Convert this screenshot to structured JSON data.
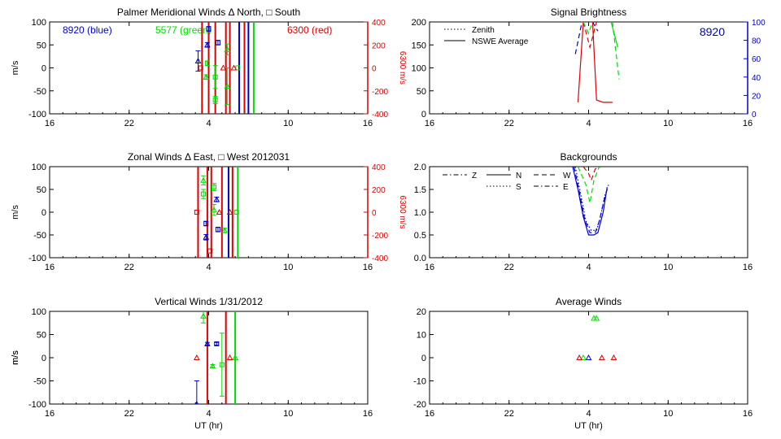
{
  "colors": {
    "blue": "#0000cc",
    "green": "#00dd00",
    "red": "#dd0000",
    "axis": "#000000"
  },
  "chart_data": [
    {
      "id": "meridional",
      "type": "scatter",
      "title": "Palmer Meridional Winds Δ North, □ South",
      "xlabel": "",
      "ylabel": "m/s",
      "y2label": "6300 m/s",
      "xticks": [
        "16",
        "22",
        "4",
        "10",
        "16"
      ],
      "xlim": [
        16,
        40
      ],
      "ylim": [
        -100,
        100
      ],
      "yticks": [
        "100",
        "50",
        "0",
        "-50",
        "-100"
      ],
      "y2ticks": [
        "400",
        "200",
        "0",
        "-200",
        "-400"
      ],
      "annotations": [
        {
          "text": "8920 (blue)",
          "color": "blue"
        },
        {
          "text": "5577 (green)",
          "color": "green"
        },
        {
          "text": "6300 (red)",
          "color": "red"
        }
      ],
      "vlines": [
        {
          "x": 27.5,
          "color": "red"
        },
        {
          "x": 28.0,
          "color": "red"
        },
        {
          "x": 28.5,
          "color": "red"
        },
        {
          "x": 29.3,
          "color": "red"
        },
        {
          "x": 29.6,
          "color": "red"
        },
        {
          "x": 30.3,
          "color": "blue"
        },
        {
          "x": 30.7,
          "color": "red"
        },
        {
          "x": 31.0,
          "color": "blue"
        },
        {
          "x": 31.4,
          "color": "green"
        }
      ],
      "series": [
        {
          "name": "8920",
          "color": "blue",
          "points": [
            {
              "x": 27.2,
              "y": 15,
              "marker": "triangle",
              "err": 22
            },
            {
              "x": 27.9,
              "y": 50,
              "marker": "triangle",
              "err": 5
            },
            {
              "x": 28.0,
              "y": 85,
              "marker": "square",
              "err": 5
            },
            {
              "x": 28.7,
              "y": 55,
              "marker": "square",
              "err": 5
            }
          ]
        },
        {
          "name": "5577",
          "color": "green",
          "points": [
            {
              "x": 27.8,
              "y": -20,
              "marker": "triangle",
              "err": 5
            },
            {
              "x": 27.9,
              "y": 10,
              "marker": "square",
              "err": 5
            },
            {
              "x": 28.5,
              "y": -20,
              "marker": "square",
              "err": 25
            },
            {
              "x": 28.5,
              "y": -70,
              "marker": "square",
              "err": 8
            },
            {
              "x": 29.4,
              "y": 40,
              "marker": "triangle",
              "err": 12
            },
            {
              "x": 29.4,
              "y": -40,
              "marker": "triangle",
              "err": 40
            },
            {
              "x": 30.2,
              "y": 0,
              "marker": "square",
              "err": 0
            }
          ]
        },
        {
          "name": "6300",
          "color": "red",
          "points": [
            {
              "x": 27.4,
              "y": 0,
              "marker": "square",
              "err": 0
            },
            {
              "x": 29.1,
              "y": 0,
              "marker": "triangle",
              "err": 0
            },
            {
              "x": 29.9,
              "y": 0,
              "marker": "triangle",
              "err": 0
            }
          ]
        }
      ]
    },
    {
      "id": "brightness",
      "type": "line",
      "title": "Signal Brightness",
      "xlabel": "",
      "ylabel": "",
      "xticks": [
        "16",
        "22",
        "4",
        "10",
        "16"
      ],
      "xlim": [
        16,
        40
      ],
      "ylim": [
        0,
        200
      ],
      "yticks": [
        "200",
        "150",
        "100",
        "50",
        "0"
      ],
      "y2ticks": [
        "100",
        "80",
        "60",
        "40",
        "20",
        "0"
      ],
      "y2lim": [
        0,
        100
      ],
      "legend": {
        "position": "top-left",
        "entries": [
          {
            "label": "Zenith",
            "style": "dotted"
          },
          {
            "label": "NSWE Average",
            "style": "solid"
          }
        ]
      },
      "annotations": [
        {
          "text": "8920",
          "color": "blue"
        }
      ],
      "series": [
        {
          "name": "8920",
          "color": "blue",
          "axis": "right",
          "style": "dashed",
          "points": [
            [
              27.0,
              65
            ],
            [
              27.5,
              100
            ]
          ]
        },
        {
          "name": "8920",
          "color": "blue",
          "axis": "right",
          "style": "dashed",
          "points": [
            [
              28.3,
              100
            ],
            [
              28.7,
              90
            ]
          ]
        },
        {
          "name": "6300",
          "color": "red",
          "style": "dashed",
          "points": [
            [
              27.6,
              200
            ],
            [
              28.1,
              145
            ],
            [
              28.6,
              200
            ]
          ]
        },
        {
          "name": "6300",
          "color": "red",
          "style": "solid",
          "points": [
            [
              27.2,
              25
            ],
            [
              27.6,
              200
            ],
            [
              28.3,
              200
            ],
            [
              28.6,
              30
            ],
            [
              29.1,
              25
            ],
            [
              29.8,
              25
            ]
          ]
        },
        {
          "name": "5577",
          "color": "green",
          "style": "dashed",
          "points": [
            [
              27.6,
              200
            ],
            [
              28.0,
              175
            ],
            [
              28.3,
              200
            ]
          ]
        },
        {
          "name": "5577",
          "color": "green",
          "style": "solid",
          "points": [
            [
              29.7,
              200
            ],
            [
              30.2,
              145
            ]
          ]
        },
        {
          "name": "5577",
          "color": "green",
          "style": "dashed",
          "points": [
            [
              29.8,
              200
            ],
            [
              30.3,
              75
            ]
          ]
        }
      ]
    },
    {
      "id": "zonal",
      "type": "scatter",
      "title": "Zonal Winds Δ East, □ West 2012031",
      "xlabel": "",
      "ylabel": "m/s",
      "y2label": "6300 m/s",
      "xticks": [
        "16",
        "22",
        "4",
        "10",
        "16"
      ],
      "xlim": [
        16,
        40
      ],
      "ylim": [
        -100,
        100
      ],
      "yticks": [
        "100",
        "50",
        "0",
        "-50",
        "-100"
      ],
      "y2ticks": [
        "400",
        "200",
        "0",
        "-200",
        "-400"
      ],
      "vlines": [
        {
          "x": 27.2,
          "color": "red"
        },
        {
          "x": 27.9,
          "color": "red"
        },
        {
          "x": 28.2,
          "color": "red"
        },
        {
          "x": 29.0,
          "color": "red"
        },
        {
          "x": 29.5,
          "color": "blue"
        },
        {
          "x": 29.8,
          "color": "red"
        },
        {
          "x": 30.2,
          "color": "green"
        }
      ],
      "series": [
        {
          "name": "8920",
          "color": "blue",
          "points": [
            {
              "x": 27.8,
              "y": -25,
              "marker": "square",
              "err": 5
            },
            {
              "x": 27.8,
              "y": -55,
              "marker": "triangle",
              "err": 6
            },
            {
              "x": 28.6,
              "y": 28,
              "marker": "triangle",
              "err": 5
            },
            {
              "x": 28.7,
              "y": -38,
              "marker": "square",
              "err": 5
            }
          ]
        },
        {
          "name": "5577",
          "color": "green",
          "points": [
            {
              "x": 27.6,
              "y": 70,
              "marker": "triangle",
              "err": 10
            },
            {
              "x": 27.6,
              "y": 40,
              "marker": "square",
              "err": 10
            },
            {
              "x": 28.4,
              "y": 55,
              "marker": "square",
              "err": 8
            },
            {
              "x": 28.4,
              "y": 5,
              "marker": "triangle",
              "err": 12
            },
            {
              "x": 29.2,
              "y": -40,
              "marker": "triangle",
              "err": 5
            },
            {
              "x": 30.1,
              "y": 0,
              "marker": "square",
              "err": 0
            }
          ]
        },
        {
          "name": "6300",
          "color": "red",
          "points": [
            {
              "x": 27.1,
              "y": 0,
              "marker": "square",
              "err": 0
            },
            {
              "x": 28.1,
              "y": -85,
              "marker": "square",
              "err": 0
            },
            {
              "x": 28.8,
              "y": 0,
              "marker": "triangle",
              "err": 0
            },
            {
              "x": 29.6,
              "y": 0,
              "marker": "triangle",
              "err": 0
            }
          ]
        }
      ]
    },
    {
      "id": "backgrounds",
      "type": "line",
      "title": "Backgrounds",
      "xlabel": "",
      "ylabel": "",
      "xticks": [
        "16",
        "22",
        "4",
        "10",
        "16"
      ],
      "xlim": [
        16,
        40
      ],
      "ylim": [
        0,
        2
      ],
      "yticks": [
        "2.0",
        "1.5",
        "1.0",
        "0.5",
        "0.0"
      ],
      "legend": {
        "position": "top-left",
        "entries": [
          {
            "label": "Z",
            "style": "dashdot"
          },
          {
            "label": "N",
            "style": "solid"
          },
          {
            "label": "W",
            "style": "dashed"
          },
          {
            "label": "S",
            "style": "dotted"
          },
          {
            "label": "E",
            "style": "dashdot"
          }
        ]
      },
      "series": [
        {
          "name": "8920",
          "color": "blue",
          "style": "solid",
          "points": [
            [
              26.8,
              2.0
            ],
            [
              27.2,
              1.5
            ],
            [
              27.6,
              0.9
            ],
            [
              28.0,
              0.5
            ],
            [
              28.4,
              0.5
            ],
            [
              28.7,
              0.55
            ],
            [
              29.1,
              1.0
            ],
            [
              29.4,
              1.55
            ]
          ]
        },
        {
          "name": "8920",
          "color": "blue",
          "style": "dashed",
          "points": [
            [
              26.9,
              2.0
            ],
            [
              27.3,
              1.45
            ],
            [
              27.7,
              0.85
            ],
            [
              28.1,
              0.55
            ],
            [
              28.5,
              0.55
            ],
            [
              28.8,
              0.8
            ],
            [
              29.2,
              1.3
            ],
            [
              29.5,
              1.6
            ]
          ]
        },
        {
          "name": "8920",
          "color": "blue",
          "style": "dotted",
          "points": [
            [
              27.0,
              2.0
            ],
            [
              27.4,
              1.4
            ],
            [
              27.8,
              0.8
            ],
            [
              28.2,
              0.6
            ],
            [
              28.6,
              0.6
            ],
            [
              28.9,
              0.9
            ],
            [
              29.2,
              1.35
            ],
            [
              29.4,
              1.5
            ]
          ]
        },
        {
          "name": "5577",
          "color": "green",
          "style": "dashed",
          "points": [
            [
              27.2,
              2.0
            ],
            [
              27.8,
              1.6
            ],
            [
              28.1,
              1.2
            ],
            [
              28.4,
              1.7
            ],
            [
              28.8,
              2.0
            ]
          ]
        },
        {
          "name": "6300",
          "color": "red",
          "style": "dashed",
          "points": [
            [
              27.6,
              2.0
            ],
            [
              28.0,
              1.85
            ],
            [
              28.2,
              1.7
            ],
            [
              28.5,
              1.95
            ],
            [
              28.9,
              2.0
            ]
          ]
        }
      ]
    },
    {
      "id": "vertical",
      "type": "scatter",
      "title": "Vertical Winds 1/31/2012",
      "xlabel": "UT (hr)",
      "ylabel": "m/s",
      "xticks": [
        "16",
        "22",
        "4",
        "10",
        "16"
      ],
      "xlim": [
        16,
        40
      ],
      "ylim": [
        -100,
        100
      ],
      "yticks": [
        "100",
        "50",
        "0",
        "-50",
        "-100"
      ],
      "vlines": [
        {
          "x": 27.9,
          "color": "red"
        },
        {
          "x": 29.3,
          "color": "red"
        },
        {
          "x": 30.0,
          "color": "green"
        }
      ],
      "series": [
        {
          "name": "8920",
          "color": "blue",
          "points": [
            {
              "x": 27.1,
              "y": -100,
              "marker": "triangle",
              "err": 50
            },
            {
              "x": 27.9,
              "y": 30,
              "marker": "triangle",
              "err": 3
            },
            {
              "x": 28.6,
              "y": 30,
              "marker": "square",
              "err": 3
            }
          ]
        },
        {
          "name": "5577",
          "color": "green",
          "points": [
            {
              "x": 27.6,
              "y": 90,
              "marker": "triangle",
              "err": 15
            },
            {
              "x": 28.3,
              "y": -18,
              "marker": "triangle",
              "err": 3
            },
            {
              "x": 29.0,
              "y": -15,
              "marker": "square",
              "err": 68
            },
            {
              "x": 30.0,
              "y": 0,
              "marker": "triangle",
              "err": 0
            }
          ]
        },
        {
          "name": "6300",
          "color": "red",
          "points": [
            {
              "x": 27.1,
              "y": 0,
              "marker": "triangle",
              "err": 0
            },
            {
              "x": 29.6,
              "y": 0,
              "marker": "triangle",
              "err": 0
            }
          ]
        }
      ]
    },
    {
      "id": "average",
      "type": "scatter",
      "title": "Average Winds",
      "xlabel": "UT (hr)",
      "ylabel": "m/s",
      "xticks": [
        "16",
        "22",
        "4",
        "10",
        "16"
      ],
      "xlim": [
        16,
        40
      ],
      "ylim": [
        -20,
        20
      ],
      "yticks": [
        "20",
        "10",
        "0",
        "-10",
        "-20"
      ],
      "series": [
        {
          "name": "8920",
          "color": "blue",
          "points": [
            {
              "x": 28.0,
              "y": 0,
              "marker": "triangle",
              "err": 0
            }
          ]
        },
        {
          "name": "5577",
          "color": "green",
          "points": [
            {
              "x": 27.6,
              "y": 0,
              "marker": "triangle",
              "err": 0
            },
            {
              "x": 28.4,
              "y": 17,
              "marker": "triangle",
              "err": 0
            },
            {
              "x": 28.6,
              "y": 17,
              "marker": "triangle",
              "err": 0
            }
          ]
        },
        {
          "name": "6300",
          "color": "red",
          "points": [
            {
              "x": 27.3,
              "y": 0,
              "marker": "triangle",
              "err": 0
            },
            {
              "x": 29.0,
              "y": 0,
              "marker": "triangle",
              "err": 0
            },
            {
              "x": 29.9,
              "y": 0,
              "marker": "triangle",
              "err": 0
            }
          ]
        }
      ]
    }
  ]
}
